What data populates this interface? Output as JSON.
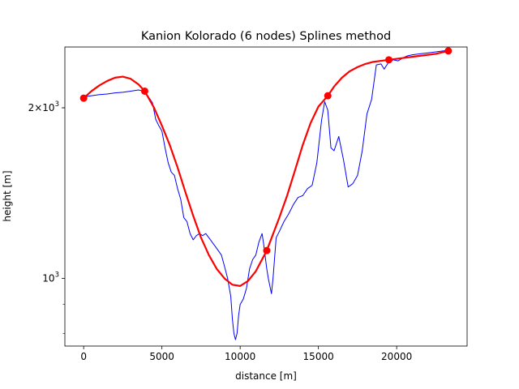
{
  "chart_data": {
    "type": "line",
    "title": "Kanion Kolorado (6 nodes) Splines method",
    "xlabel": "distance [m]",
    "ylabel": "height [m]",
    "yscale": "log",
    "xlim": [
      -1200,
      24500
    ],
    "ylim": [
      760,
      2560
    ],
    "grid": false,
    "x_ticks": [
      {
        "value": 0,
        "label": "0"
      },
      {
        "value": 5000,
        "label": "5000"
      },
      {
        "value": 10000,
        "label": "10000"
      },
      {
        "value": 15000,
        "label": "15000"
      },
      {
        "value": 20000,
        "label": "20000"
      }
    ],
    "y_ticks": [
      {
        "value": 1000,
        "label_base": "10",
        "label_exp": "3",
        "label_prefix": ""
      },
      {
        "value": 2000,
        "label_base": "10",
        "label_exp": "3",
        "label_prefix": "2×"
      }
    ],
    "y_minor_ticks": [
      800,
      900,
      2000
    ],
    "series": [
      {
        "role": "profile",
        "color": "#0000ff",
        "x": [
          0,
          500,
          1000,
          1500,
          2000,
          2500,
          3000,
          3500,
          3800,
          4100,
          4400,
          4600,
          4800,
          5000,
          5200,
          5400,
          5600,
          5800,
          6000,
          6200,
          6400,
          6600,
          6800,
          7000,
          7200,
          7400,
          7600,
          7800,
          8000,
          8200,
          8400,
          8600,
          8800,
          9000,
          9200,
          9400,
          9500,
          9600,
          9700,
          9800,
          9900,
          10000,
          10200,
          10400,
          10600,
          10800,
          11000,
          11200,
          11400,
          11500,
          11700,
          11800,
          12000,
          12100,
          12300,
          12500,
          12800,
          13100,
          13400,
          13700,
          14000,
          14300,
          14600,
          14900,
          15200,
          15400,
          15600,
          15800,
          16000,
          16300,
          16600,
          16900,
          17200,
          17500,
          17800,
          18100,
          18400,
          18700,
          19000,
          19200,
          19500,
          19800,
          20100,
          20400,
          20700,
          21000,
          21500,
          22000,
          22500,
          23000,
          23400
        ],
        "y": [
          2090,
          2100,
          2110,
          2115,
          2125,
          2130,
          2140,
          2150,
          2140,
          2100,
          2040,
          1910,
          1860,
          1820,
          1700,
          1600,
          1540,
          1520,
          1440,
          1380,
          1280,
          1260,
          1200,
          1170,
          1190,
          1200,
          1190,
          1200,
          1180,
          1160,
          1140,
          1120,
          1100,
          1050,
          1000,
          930,
          850,
          800,
          780,
          800,
          860,
          900,
          920,
          960,
          1040,
          1080,
          1100,
          1160,
          1200,
          1150,
          1040,
          1000,
          940,
          1000,
          1180,
          1210,
          1260,
          1300,
          1350,
          1390,
          1400,
          1440,
          1460,
          1600,
          1900,
          2050,
          1980,
          1700,
          1680,
          1780,
          1620,
          1450,
          1470,
          1520,
          1680,
          1950,
          2070,
          2380,
          2390,
          2340,
          2410,
          2430,
          2420,
          2450,
          2470,
          2480,
          2490,
          2500,
          2510,
          2520,
          2530
        ]
      },
      {
        "role": "spline",
        "color": "#ff0000",
        "x": [
          0,
          500,
          1000,
          1500,
          2000,
          2500,
          3000,
          3500,
          3900,
          4500,
          5000,
          5500,
          6000,
          6500,
          7000,
          7500,
          8000,
          8500,
          9000,
          9500,
          10000,
          10500,
          11000,
          11700,
          12500,
          13000,
          13500,
          14000,
          14500,
          15000,
          15600,
          16000,
          16500,
          17000,
          17500,
          18000,
          18500,
          19000,
          19500,
          20500,
          21500,
          22500,
          23300
        ],
        "y": [
          2080,
          2140,
          2190,
          2230,
          2260,
          2270,
          2250,
          2200,
          2140,
          2000,
          1860,
          1720,
          1570,
          1420,
          1290,
          1180,
          1100,
          1040,
          1000,
          975,
          970,
          990,
          1030,
          1120,
          1280,
          1400,
          1550,
          1720,
          1880,
          2010,
          2100,
          2180,
          2260,
          2320,
          2360,
          2390,
          2410,
          2420,
          2430,
          2450,
          2470,
          2490,
          2520
        ]
      }
    ],
    "nodes": {
      "color": "#ff0000",
      "x": [
        0,
        3900,
        11700,
        15600,
        19500,
        23300
      ],
      "y": [
        2080,
        2140,
        1120,
        2100,
        2430,
        2520
      ]
    }
  }
}
